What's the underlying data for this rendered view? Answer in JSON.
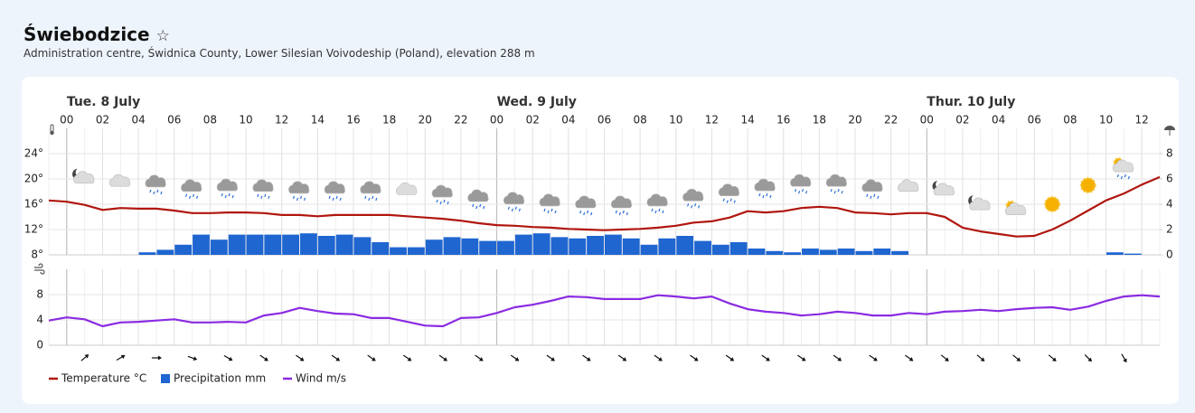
{
  "header": {
    "title": "Świebodzice",
    "star": "☆",
    "subtitle": "Administration centre, Świdnica County, Lower Silesian Voivodeship (Poland), elevation 288 m"
  },
  "chart_data": [
    {
      "type": "combo",
      "x": [
        -1,
        0,
        1,
        2,
        3,
        4,
        5,
        6,
        7,
        8,
        9,
        10,
        11,
        12,
        13,
        14,
        15,
        16,
        17,
        18,
        19,
        20,
        21,
        22,
        23,
        24,
        25,
        26,
        27,
        28,
        29,
        30,
        31,
        32,
        33,
        34,
        35,
        36,
        37,
        38,
        39,
        40,
        41,
        42,
        43,
        44,
        45,
        46,
        47,
        48,
        49,
        50,
        51,
        52,
        53,
        54,
        55,
        56,
        57,
        58,
        59,
        60,
        61
      ],
      "xlim": [
        -1,
        61
      ],
      "xticks": [
        {
          "value": 0,
          "label": "00"
        },
        {
          "value": 2,
          "label": "02"
        },
        {
          "value": 4,
          "label": "04"
        },
        {
          "value": 6,
          "label": "06"
        },
        {
          "value": 8,
          "label": "08"
        },
        {
          "value": 10,
          "label": "10"
        },
        {
          "value": 12,
          "label": "12"
        },
        {
          "value": 14,
          "label": "14"
        },
        {
          "value": 16,
          "label": "16"
        },
        {
          "value": 18,
          "label": "18"
        },
        {
          "value": 20,
          "label": "20"
        },
        {
          "value": 22,
          "label": "22"
        },
        {
          "value": 24,
          "label": "00"
        },
        {
          "value": 26,
          "label": "02"
        },
        {
          "value": 28,
          "label": "04"
        },
        {
          "value": 30,
          "label": "06"
        },
        {
          "value": 32,
          "label": "08"
        },
        {
          "value": 34,
          "label": "10"
        },
        {
          "value": 36,
          "label": "12"
        },
        {
          "value": 38,
          "label": "14"
        },
        {
          "value": 40,
          "label": "16"
        },
        {
          "value": 42,
          "label": "18"
        },
        {
          "value": 44,
          "label": "20"
        },
        {
          "value": 46,
          "label": "22"
        },
        {
          "value": 48,
          "label": "00"
        },
        {
          "value": 50,
          "label": "02"
        },
        {
          "value": 52,
          "label": "04"
        },
        {
          "value": 54,
          "label": "06"
        },
        {
          "value": 56,
          "label": "08"
        },
        {
          "value": 58,
          "label": "10"
        },
        {
          "value": 60,
          "label": "12"
        }
      ],
      "annotations": [
        {
          "x": 0,
          "text": "Tue. 8 July"
        },
        {
          "x": 24,
          "text": "Wed. 9 July"
        },
        {
          "x": 48,
          "text": "Thur. 10 July"
        }
      ],
      "ylim": [
        8,
        28
      ],
      "yticks": [
        {
          "value": 8,
          "label": "8°"
        },
        {
          "value": 12,
          "label": "12°"
        },
        {
          "value": 16,
          "label": "16°"
        },
        {
          "value": 20,
          "label": "20°"
        },
        {
          "value": 24,
          "label": "24°"
        }
      ],
      "y2lim": [
        0,
        10
      ],
      "y2ticks": [
        0,
        2,
        4,
        6,
        8
      ],
      "grid": true,
      "series": [
        {
          "name": "Temperature °C",
          "type": "line",
          "color": "#b0160e",
          "values": [
            16.6,
            16.4,
            15.9,
            15.1,
            15.4,
            15.3,
            15.3,
            15.0,
            14.6,
            14.6,
            14.7,
            14.7,
            14.6,
            14.3,
            14.3,
            14.1,
            14.3,
            14.3,
            14.3,
            14.3,
            14.1,
            13.9,
            13.7,
            13.4,
            13.0,
            12.7,
            12.6,
            12.4,
            12.3,
            12.1,
            12.0,
            11.9,
            12.0,
            12.1,
            12.3,
            12.6,
            13.1,
            13.3,
            13.9,
            14.9,
            14.7,
            14.9,
            15.4,
            15.6,
            15.4,
            14.7,
            14.6,
            14.4,
            14.6,
            14.6,
            14.0,
            12.3,
            11.7,
            11.3,
            10.9,
            11.0,
            12.0,
            13.4,
            15.0,
            16.6,
            17.7,
            19.1,
            20.3
          ]
        },
        {
          "name": "Precipitation mm",
          "type": "bar",
          "axis": "y2",
          "color": "#1f66d1",
          "values": [
            0,
            0,
            0,
            0,
            0,
            0.2,
            0.4,
            0.8,
            1.6,
            1.2,
            1.6,
            1.6,
            1.6,
            1.6,
            1.7,
            1.5,
            1.6,
            1.4,
            1.0,
            0.6,
            0.6,
            1.2,
            1.4,
            1.3,
            1.1,
            1.1,
            1.6,
            1.7,
            1.4,
            1.3,
            1.5,
            1.6,
            1.3,
            0.8,
            1.3,
            1.5,
            1.1,
            0.8,
            1.0,
            0.5,
            0.3,
            0.2,
            0.5,
            0.4,
            0.5,
            0.3,
            0.5,
            0.3,
            0,
            0,
            0,
            0,
            0,
            0,
            0,
            0,
            0,
            0,
            0,
            0.2,
            0.1,
            0,
            0
          ]
        }
      ]
    },
    {
      "type": "line",
      "x": [
        -1,
        0,
        1,
        2,
        3,
        4,
        5,
        6,
        7,
        8,
        9,
        10,
        11,
        12,
        13,
        14,
        15,
        16,
        17,
        18,
        19,
        20,
        21,
        22,
        23,
        24,
        25,
        26,
        27,
        28,
        29,
        30,
        31,
        32,
        33,
        34,
        35,
        36,
        37,
        38,
        39,
        40,
        41,
        42,
        43,
        44,
        45,
        46,
        47,
        48,
        49,
        50,
        51,
        52,
        53,
        54,
        55,
        56,
        57,
        58,
        59,
        60,
        61
      ],
      "xlim": [
        -1,
        61
      ],
      "ylim": [
        0,
        12
      ],
      "yticks": [
        0,
        4,
        8
      ],
      "grid": true,
      "series": [
        {
          "name": "Wind m/s",
          "type": "line",
          "color": "#8a2be2",
          "values": [
            3.9,
            4.4,
            4.1,
            3.0,
            3.6,
            3.7,
            3.9,
            4.1,
            3.6,
            3.6,
            3.7,
            3.6,
            4.7,
            5.1,
            5.9,
            5.4,
            5.0,
            4.9,
            4.3,
            4.3,
            3.7,
            3.1,
            3.0,
            4.3,
            4.4,
            5.1,
            6.0,
            6.4,
            7.0,
            7.7,
            7.6,
            7.3,
            7.3,
            7.3,
            7.9,
            7.7,
            7.4,
            7.7,
            6.6,
            5.7,
            5.3,
            5.1,
            4.7,
            4.9,
            5.3,
            5.1,
            4.7,
            4.7,
            5.1,
            4.9,
            5.3,
            5.4,
            5.6,
            5.4,
            5.7,
            5.9,
            6.0,
            5.6,
            6.1,
            7.0,
            7.7,
            7.9,
            7.7
          ]
        }
      ],
      "wind_arrows": {
        "x": [
          1,
          3,
          5,
          7,
          9,
          11,
          13,
          15,
          17,
          19,
          21,
          23,
          25,
          27,
          29,
          31,
          33,
          35,
          37,
          39,
          41,
          43,
          45,
          47,
          49,
          51,
          53,
          55,
          57,
          59
        ],
        "angle": [
          -40,
          -30,
          0,
          20,
          30,
          35,
          35,
          35,
          35,
          35,
          35,
          35,
          35,
          35,
          35,
          35,
          35,
          35,
          35,
          35,
          35,
          35,
          35,
          35,
          40,
          40,
          40,
          40,
          45,
          60
        ]
      }
    }
  ]
}
